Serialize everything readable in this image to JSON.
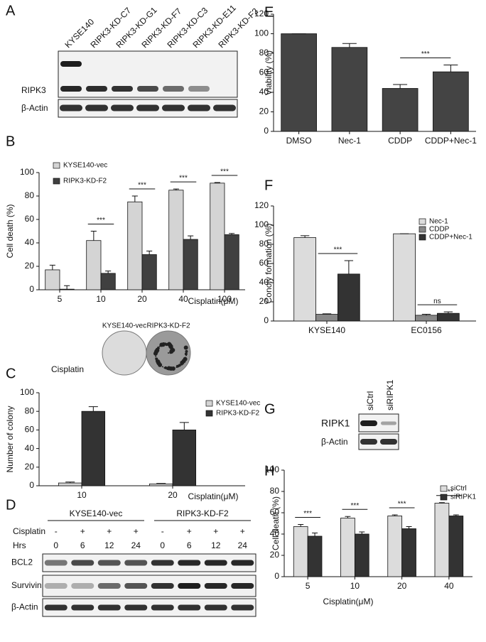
{
  "panels": [
    "A",
    "B",
    "C",
    "D",
    "E",
    "F",
    "G",
    "H"
  ],
  "blots": {
    "A": {
      "lanes": [
        "KYSE140",
        "RIPK3-KD-C7",
        "RIPK3-KD-G1",
        "RIPK3-KD-F7",
        "RIPK3-KD-C3",
        "RIPK3-KD-E11",
        "RIPK3-KD-F2"
      ],
      "rows": [
        "RIPK3",
        "β-Actin"
      ]
    },
    "C": {
      "labels": [
        "KYSE140-vec",
        "RIPK3-KD-F2"
      ],
      "row": "Cisplatin"
    },
    "D": {
      "groups": [
        "KYSE140-vec",
        "RIPK3-KD-F2"
      ],
      "treatments": [
        {
          "label": "Cisplatin",
          "values": [
            "-",
            "+",
            "+",
            "+",
            "-",
            "+",
            "+",
            "+"
          ]
        },
        {
          "label": "Hrs",
          "values": [
            "0",
            "6",
            "12",
            "24",
            "0",
            "6",
            "12",
            "24"
          ]
        }
      ],
      "rows": [
        "BCL2",
        "Survivin",
        "β-Actin"
      ]
    },
    "G": {
      "lanes": [
        "siCtrl",
        "siRIPK1"
      ],
      "rows": [
        "RIPK1",
        "β-Actin"
      ]
    }
  },
  "chart_data": [
    {
      "type": "bar",
      "ylabel": "Cell death (%)",
      "xlabel": "Cisplatin(μM)",
      "categories": [
        "5",
        "10",
        "20",
        "40",
        "100"
      ],
      "series": [
        {
          "name": "KYSE140-vec",
          "color": "#d4d4d4",
          "values": [
            17,
            42,
            75,
            85,
            91
          ],
          "errors": [
            4,
            8,
            5,
            1,
            0.5
          ]
        },
        {
          "name": "RIPK3-KD-F2",
          "color": "#404040",
          "values": [
            0.5,
            14,
            30,
            43,
            47
          ],
          "errors": [
            3,
            2,
            3,
            3,
            1
          ]
        }
      ],
      "significance": [
        null,
        "***",
        "***",
        "***",
        "***"
      ],
      "ylim": [
        0,
        100
      ],
      "yticks": [
        0,
        20,
        40,
        60,
        80,
        100
      ]
    },
    {
      "type": "bar",
      "ylabel": "Number of colony",
      "xlabel": "Cisplatin(μM)",
      "categories": [
        "10",
        "20"
      ],
      "series": [
        {
          "name": "KYSE140-vec",
          "color": "#d4d4d4",
          "values": [
            3,
            2
          ],
          "errors": [
            1,
            0.5
          ]
        },
        {
          "name": "RIPK3-KD-F2",
          "color": "#333333",
          "values": [
            80,
            60
          ],
          "errors": [
            5,
            8
          ]
        }
      ],
      "ylim": [
        0,
        100
      ],
      "yticks": [
        0,
        20,
        40,
        60,
        80,
        100
      ]
    },
    {
      "type": "bar",
      "ylabel": "Viability (%)",
      "categories": [
        "DMSO",
        "Nec-1",
        "CDDP",
        "CDDP+Nec-1"
      ],
      "values": [
        100,
        86,
        44,
        61
      ],
      "errors": [
        0,
        4,
        4,
        7
      ],
      "color": "#444444",
      "brackets": [
        {
          "categories": [
            "CDDP",
            "CDDP+Nec-1"
          ],
          "label": "***"
        }
      ],
      "ylim": [
        0,
        120
      ],
      "yticks": [
        0,
        20,
        40,
        60,
        80,
        100,
        120
      ]
    },
    {
      "type": "bar",
      "ylabel": "Conoly formation (%)",
      "categories": [
        "KYSE140",
        "EC0156"
      ],
      "series": [
        {
          "name": "Nec-1",
          "color": "#dcdcdc",
          "values": [
            87,
            91
          ],
          "errors": [
            2,
            0
          ]
        },
        {
          "name": "CDDP",
          "color": "#888888",
          "values": [
            7,
            6
          ],
          "errors": [
            0.5,
            1
          ]
        },
        {
          "name": "CDDP+Nec-1",
          "color": "#333333",
          "values": [
            49,
            8
          ],
          "errors": [
            14,
            1.5
          ]
        }
      ],
      "significance": [
        "***",
        "ns"
      ],
      "ylim": [
        0,
        120
      ],
      "yticks": [
        0,
        20,
        40,
        60,
        80,
        100,
        120
      ]
    },
    {
      "type": "bar",
      "ylabel": "Cell death (%)",
      "xlabel": "Cisplatin(μM)",
      "categories": [
        "5",
        "10",
        "20",
        "40"
      ],
      "series": [
        {
          "name": "siCtrl",
          "color": "#dcdcdc",
          "values": [
            47,
            55,
            57,
            69
          ],
          "errors": [
            2,
            1.5,
            1,
            0.5
          ]
        },
        {
          "name": "siRIPK1",
          "color": "#333333",
          "values": [
            38,
            40,
            45,
            57
          ],
          "errors": [
            3,
            2,
            2,
            1
          ]
        }
      ],
      "significance": [
        "***",
        "***",
        "***",
        "***"
      ],
      "ylim": [
        0,
        100
      ],
      "yticks": [
        0,
        20,
        40,
        60,
        80,
        100
      ]
    }
  ]
}
